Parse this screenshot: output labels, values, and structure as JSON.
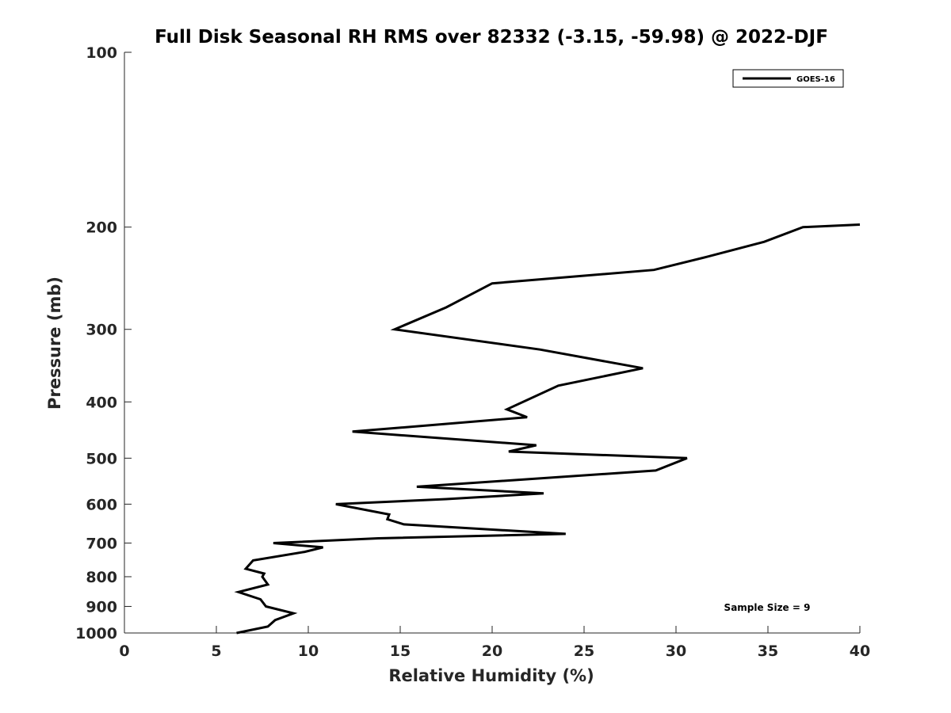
{
  "chart_data": {
    "type": "line",
    "title": "Full Disk Seasonal RH RMS over 82332 (-3.15, -59.98) @ 2022-DJF",
    "xlabel": "Relative Humidity (%)",
    "ylabel": "Pressure (mb)",
    "xlim": [
      0,
      40
    ],
    "ylim": [
      100,
      1000
    ],
    "y_scale": "log",
    "y_reversed": true,
    "x_ticks": [
      "0",
      "5",
      "10",
      "15",
      "20",
      "25",
      "30",
      "35",
      "40"
    ],
    "x_tick_values": [
      0,
      5,
      10,
      15,
      20,
      25,
      30,
      35,
      40
    ],
    "y_ticks": [
      "100",
      "200",
      "300",
      "400",
      "500",
      "600",
      "700",
      "800",
      "900",
      "1000"
    ],
    "y_tick_values": [
      100,
      200,
      300,
      400,
      500,
      600,
      700,
      800,
      900,
      1000
    ],
    "grid": false,
    "legend": {
      "position": "top-right",
      "entries": [
        "GOES-16"
      ]
    },
    "annotation": "Sample Size = 9",
    "series": [
      {
        "name": "GOES-16",
        "color": "#000000",
        "points": [
          [
            6.1,
            1000
          ],
          [
            7.8,
            975
          ],
          [
            8.2,
            950
          ],
          [
            9.2,
            925
          ],
          [
            7.7,
            900
          ],
          [
            7.4,
            875
          ],
          [
            6.2,
            850
          ],
          [
            7.8,
            825
          ],
          [
            7.5,
            800
          ],
          [
            7.6,
            790
          ],
          [
            6.6,
            775
          ],
          [
            7.0,
            750
          ],
          [
            9.8,
            725
          ],
          [
            10.8,
            712
          ],
          [
            8.1,
            700
          ],
          [
            13.8,
            687
          ],
          [
            24.0,
            675
          ],
          [
            15.2,
            650
          ],
          [
            14.3,
            637
          ],
          [
            14.4,
            625
          ],
          [
            11.5,
            600
          ],
          [
            17.5,
            588
          ],
          [
            22.8,
            575
          ],
          [
            15.9,
            560
          ],
          [
            28.9,
            525
          ],
          [
            30.6,
            500
          ],
          [
            20.9,
            487
          ],
          [
            22.4,
            475
          ],
          [
            12.4,
            450
          ],
          [
            21.9,
            425
          ],
          [
            20.8,
            412
          ],
          [
            23.6,
            375
          ],
          [
            28.2,
            350
          ],
          [
            22.6,
            325
          ],
          [
            14.7,
            300
          ],
          [
            17.5,
            275
          ],
          [
            20.0,
            250
          ],
          [
            28.8,
            237
          ],
          [
            31.7,
            225
          ],
          [
            34.8,
            212
          ],
          [
            36.9,
            200
          ],
          [
            40.0,
            198
          ]
        ]
      }
    ]
  }
}
